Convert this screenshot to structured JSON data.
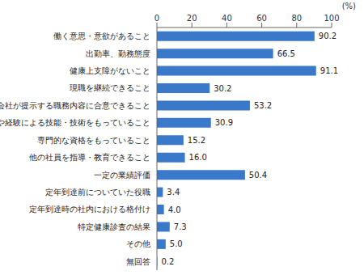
{
  "chart_data": {
    "type": "bar",
    "orientation": "horizontal",
    "x_label": "(%)",
    "categories": [
      "働く意思・意欲があること",
      "出勤率、勤務態度",
      "健康上支障がないこと",
      "現職を継続できること",
      "会社が提示する職務内容に合意できること",
      "熟練や経験による技能・技術をもっていること",
      "専門的な資格をもっていること",
      "他の社員を指導・教育できること",
      "一定の業績評価",
      "定年到達前についていた役職",
      "定年到達時の社内における格付け",
      "特定健康診査の結果",
      "その他",
      "無回答"
    ],
    "values": [
      90.2,
      66.5,
      91.1,
      30.2,
      53.2,
      30.9,
      15.2,
      16.0,
      50.4,
      3.4,
      4.0,
      7.3,
      5.0,
      0.2
    ],
    "color": "#3a78c9",
    "xlim": [
      0,
      100
    ],
    "xticks": [
      0,
      20,
      40,
      60,
      80,
      100
    ],
    "grid": false,
    "data_labels": true
  }
}
